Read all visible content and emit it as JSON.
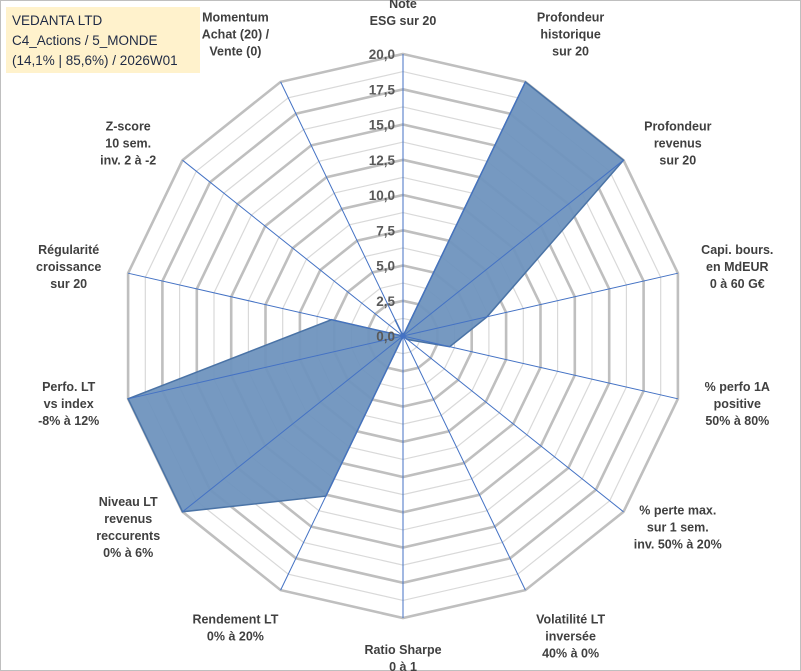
{
  "title_box": {
    "line1": "VEDANTA LTD",
    "line2": "C4_Actions / 5_MONDE",
    "line3": "(14,1% | 85,6%) / 2026W01"
  },
  "colors": {
    "fill": "#6f93be",
    "stroke": "#4a73a6",
    "grid_major": "#bfbfbf",
    "grid_minor": "#d9d9d9",
    "spoke": "#4472c4",
    "title_bg": "#fff2cc"
  },
  "chart_data": {
    "type": "radar",
    "rmin": 0,
    "rmax": 20,
    "major_step": 2.5,
    "minor_step": 1.25,
    "tick_labels": [
      "0,0",
      "2,5",
      "5,0",
      "7,5",
      "10,0",
      "12,5",
      "15,0",
      "17,5",
      "20,0"
    ],
    "categories": [
      {
        "lines": [
          "Note",
          "ESG sur 20"
        ]
      },
      {
        "lines": [
          "Profondeur",
          "historique",
          "sur 20"
        ]
      },
      {
        "lines": [
          "Profondeur",
          "revenus",
          "sur 20"
        ]
      },
      {
        "lines": [
          "Capi. bours.",
          "en MdEUR",
          "0 à 60 G€"
        ]
      },
      {
        "lines": [
          "% perfo 1A",
          "positive",
          "50% à 80%"
        ]
      },
      {
        "lines": [
          "% perte max.",
          "sur 1 sem.",
          "inv. 50% à 20%"
        ]
      },
      {
        "lines": [
          "Volatilité LT",
          "inversée",
          "40% à 0%"
        ]
      },
      {
        "lines": [
          "Ratio Sharpe",
          "0 à 1"
        ]
      },
      {
        "lines": [
          "Rendement LT",
          "0% à 20%"
        ]
      },
      {
        "lines": [
          "Niveau LT",
          "revenus",
          "reccurents",
          "0% à 6%"
        ]
      },
      {
        "lines": [
          "Perfo. LT",
          "vs index",
          "-8% à 12%"
        ]
      },
      {
        "lines": [
          "Régularité",
          "croissance",
          "sur 20"
        ]
      },
      {
        "lines": [
          "Z-score",
          "10 sem.",
          "inv. 2 à -2"
        ]
      },
      {
        "lines": [
          "Momentum",
          "Achat (20) /",
          "Vente (0)"
        ]
      }
    ],
    "series": [
      {
        "name": "VEDANTA LTD",
        "values": [
          0,
          20,
          20,
          6.1,
          3.4,
          0.4,
          0,
          0,
          12.6,
          20,
          20,
          5.2,
          0,
          1.3
        ]
      }
    ]
  }
}
